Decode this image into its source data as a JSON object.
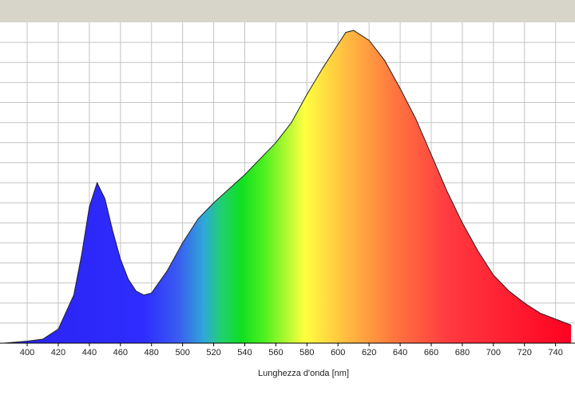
{
  "chart_data": {
    "type": "area",
    "x_label": "Lunghezza d'onda [nm]",
    "x": [
      385,
      400,
      410,
      420,
      430,
      435,
      440,
      445,
      450,
      455,
      460,
      465,
      470,
      475,
      480,
      490,
      500,
      510,
      520,
      540,
      560,
      570,
      580,
      590,
      600,
      605,
      610,
      620,
      630,
      640,
      650,
      660,
      670,
      680,
      690,
      700,
      710,
      720,
      730,
      740,
      750
    ],
    "values": [
      0,
      0.1,
      0.2,
      0.7,
      2.4,
      4.4,
      6.8,
      8.0,
      7.2,
      5.6,
      4.2,
      3.2,
      2.6,
      2.4,
      2.5,
      3.6,
      5.0,
      6.2,
      7.0,
      8.4,
      10.0,
      11.0,
      12.4,
      13.7,
      14.9,
      15.5,
      15.6,
      15.1,
      14.1,
      12.7,
      11.2,
      9.4,
      7.6,
      6.0,
      4.6,
      3.4,
      2.6,
      2.0,
      1.5,
      1.2,
      0.9
    ],
    "xlim": [
      382.5,
      752.5
    ],
    "xticks": [
      400,
      420,
      440,
      460,
      480,
      500,
      520,
      540,
      560,
      580,
      600,
      620,
      640,
      660,
      680,
      700,
      720,
      740
    ],
    "ylim": [
      0,
      16
    ],
    "ygrid": [
      1,
      2,
      3,
      4,
      5,
      6,
      7,
      8,
      9,
      10,
      11,
      12,
      13,
      14,
      15
    ],
    "grid": true
  }
}
